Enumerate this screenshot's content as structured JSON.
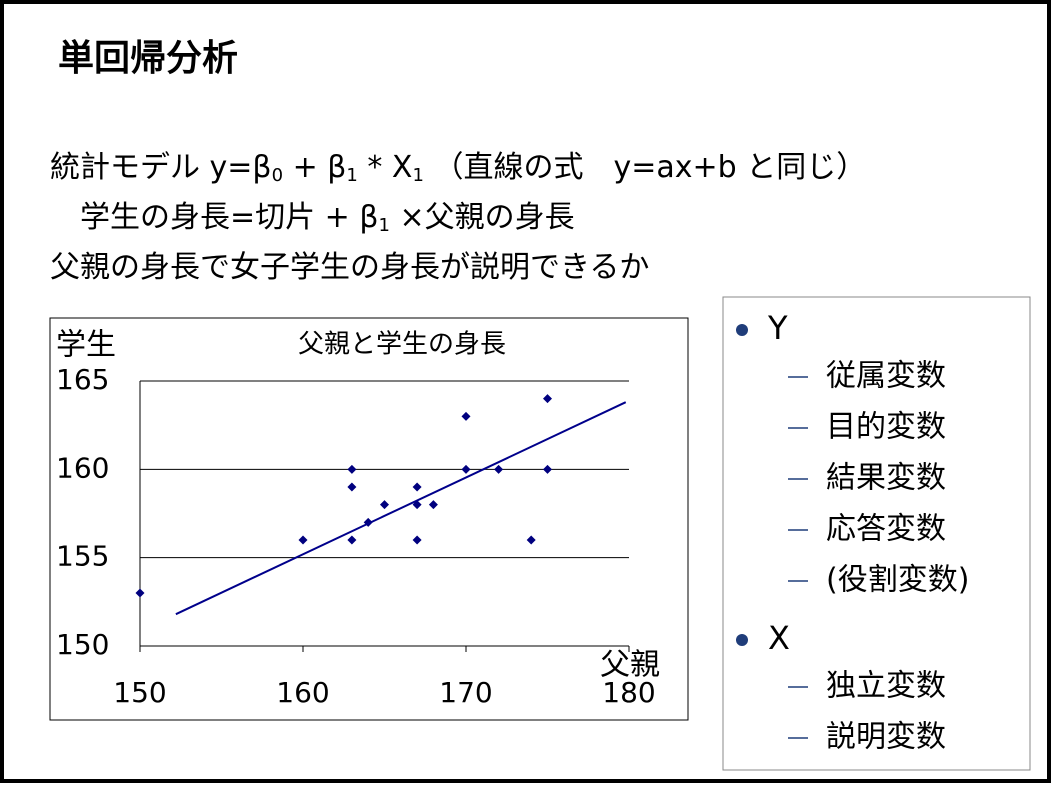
{
  "title": "単回帰分析",
  "body": [
    [
      {
        "text": "統計モデル y=β"
      },
      {
        "sub": "0"
      },
      {
        "text": " + β"
      },
      {
        "sub": "1"
      },
      {
        "text": " * X"
      },
      {
        "sub": "1"
      },
      {
        "text": " （直線の式　y=ax+b と同じ）"
      }
    ],
    [
      {
        "text": "　学生の身長=切片 + β"
      },
      {
        "sub": "1"
      },
      {
        "text": " ×父親の身長"
      }
    ],
    [
      {
        "text": "父親の身長で女子学生の身長が説明できるか"
      }
    ]
  ],
  "terms": [
    {
      "label": "Y",
      "items": [
        "従属変数",
        "目的変数",
        "結果変数",
        "応答変数",
        "(役割変数)"
      ]
    },
    {
      "label": "X",
      "items": [
        "独立変数",
        "説明変数"
      ]
    }
  ],
  "chart_data": {
    "type": "scatter",
    "title": "父親と学生の身長",
    "x_label": "父親",
    "y_label": "学生",
    "x": [
      150,
      160,
      163,
      163,
      163,
      164,
      165,
      167,
      167,
      167,
      168,
      170,
      170,
      172,
      174,
      175,
      175
    ],
    "values": [
      153,
      156,
      160,
      159,
      156,
      157,
      158,
      159,
      158,
      156,
      158,
      163,
      160,
      160,
      156,
      164,
      160
    ],
    "color": "#00007f",
    "trendline": {
      "x": [
        152.2,
        179.8
      ],
      "y": [
        151.8,
        163.8
      ],
      "color": "#00008b"
    },
    "xlim": [
      150,
      180
    ],
    "xticks": [
      150,
      160,
      170,
      180
    ],
    "ylim": [
      150,
      165
    ],
    "yticks": [
      150,
      155,
      160,
      165
    ],
    "grid": true
  }
}
